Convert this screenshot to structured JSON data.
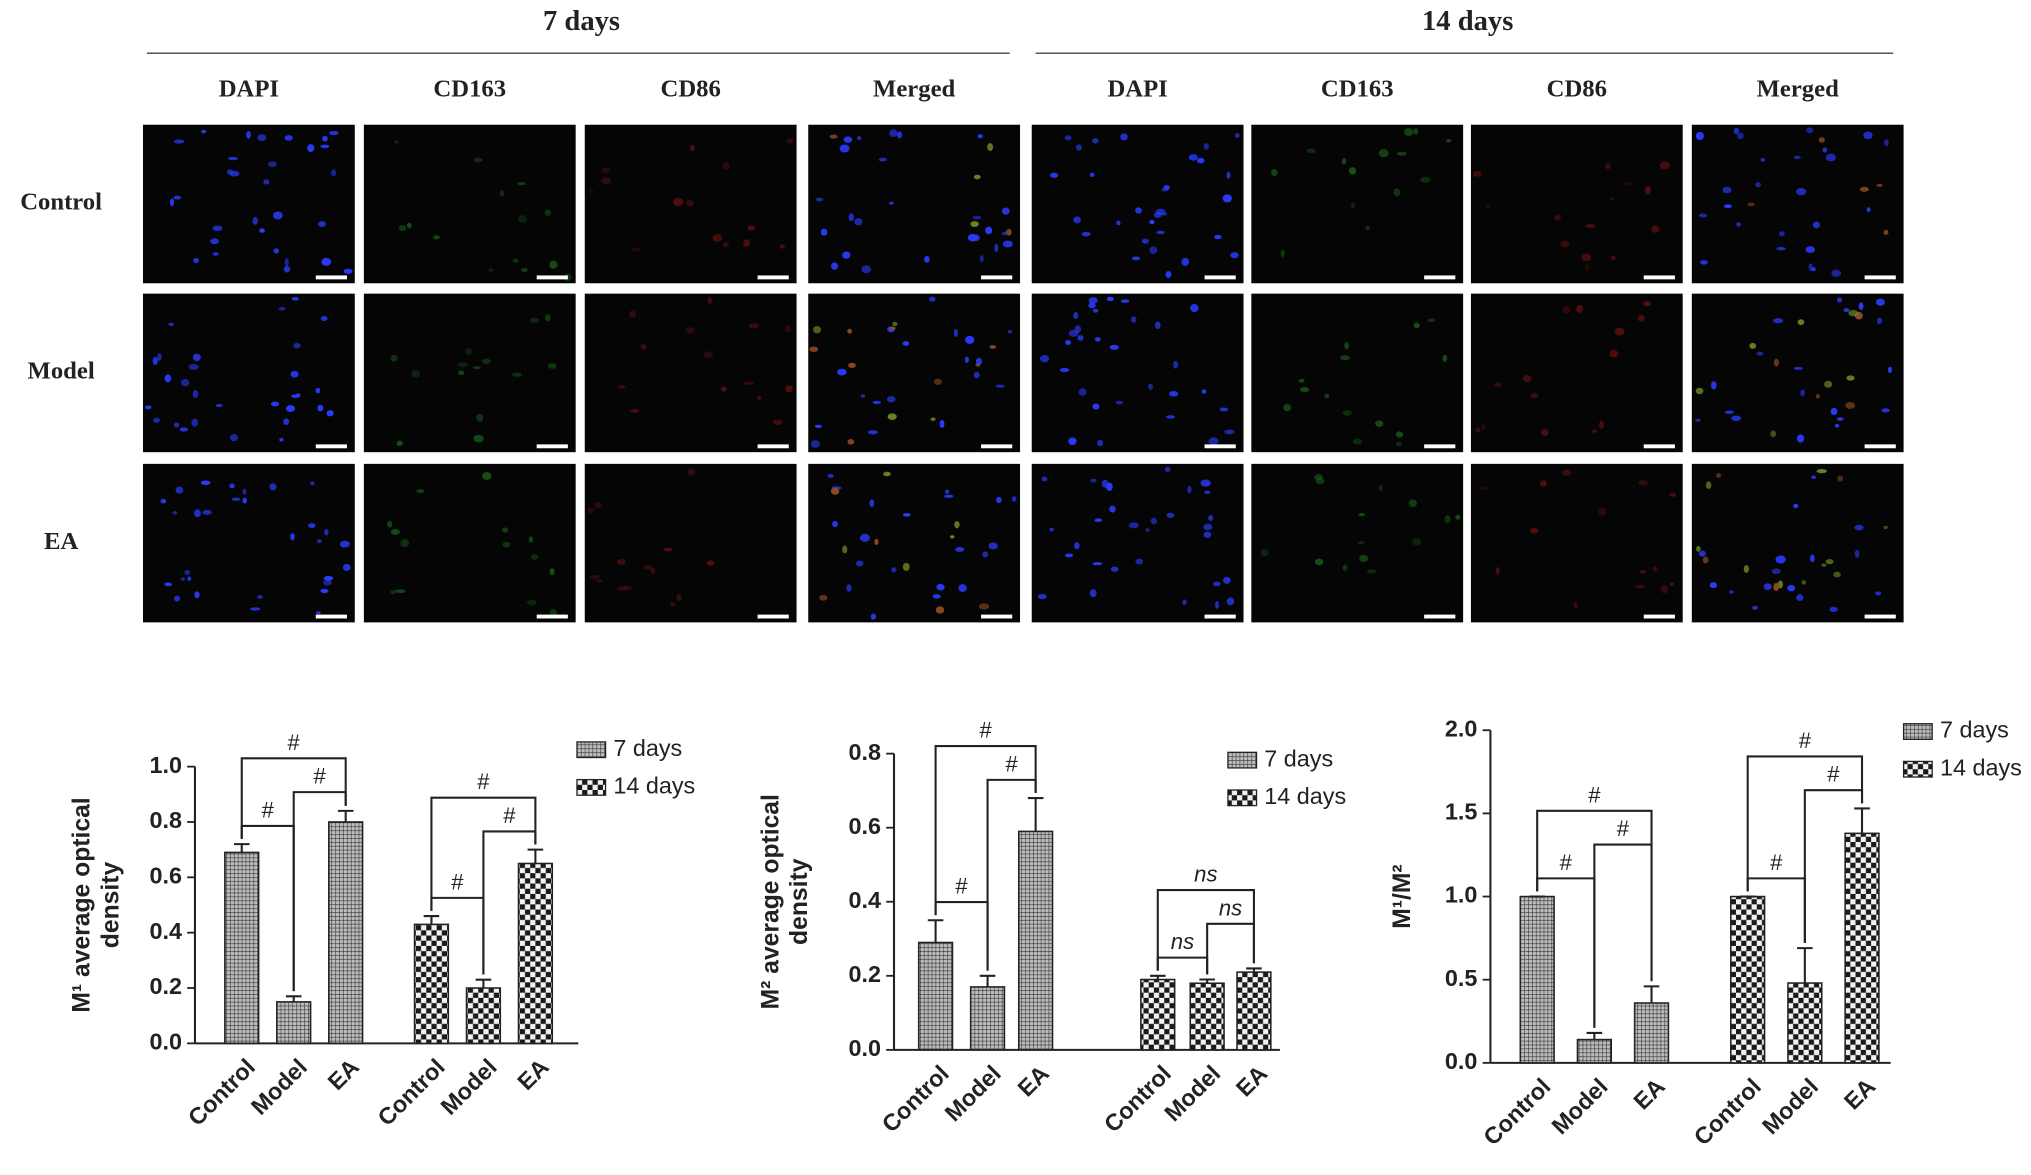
{
  "micrographs": {
    "groups": [
      "7 days",
      "14 days"
    ],
    "columns": [
      "DAPI",
      "CD163",
      "CD86",
      "Merged"
    ],
    "rows": [
      "Control",
      "Model",
      "EA"
    ]
  },
  "chart_data": [
    {
      "type": "bar",
      "ylabel": [
        "M¹ average optical",
        "density"
      ],
      "categories": [
        "Control",
        "Model",
        "EA"
      ],
      "series": [
        {
          "name": "7 days",
          "pattern": "hatch",
          "values": [
            0.69,
            0.15,
            0.8
          ],
          "errors": [
            0.03,
            0.02,
            0.04
          ]
        },
        {
          "name": "14 days",
          "pattern": "checker",
          "values": [
            0.43,
            0.2,
            0.65
          ],
          "errors": [
            0.03,
            0.03,
            0.05
          ]
        }
      ],
      "ylim": [
        0,
        1
      ],
      "yticks": [
        {
          "value": 0,
          "label": "0.0"
        },
        0.2,
        0.4,
        0.6,
        0.8,
        {
          "value": 1,
          "label": "1.0"
        }
      ],
      "annotations": [
        {
          "label": "#",
          "series": "7 days",
          "between": [
            "Control",
            "Model"
          ]
        },
        {
          "label": "#",
          "series": "7 days",
          "between": [
            "Model",
            "EA"
          ]
        },
        {
          "label": "#",
          "series": "7 days",
          "between": [
            "Control",
            "EA"
          ]
        },
        {
          "label": "#",
          "series": "14 days",
          "between": [
            "Control",
            "Model"
          ]
        },
        {
          "label": "#",
          "series": "14 days",
          "between": [
            "Model",
            "EA"
          ]
        },
        {
          "label": "#",
          "series": "14 days",
          "between": [
            "Control",
            "EA"
          ]
        }
      ]
    },
    {
      "type": "bar",
      "ylabel": [
        "M² average optical",
        "density"
      ],
      "categories": [
        "Control",
        "Model",
        "EA"
      ],
      "series": [
        {
          "name": "7 days",
          "pattern": "hatch",
          "values": [
            0.29,
            0.17,
            0.59
          ],
          "errors": [
            0.06,
            0.03,
            0.09
          ]
        },
        {
          "name": "14 days",
          "pattern": "checker",
          "values": [
            0.19,
            0.18,
            0.21
          ],
          "errors": [
            0.01,
            0.01,
            0.01
          ]
        }
      ],
      "ylim": [
        0,
        0.8
      ],
      "yticks": [
        {
          "value": 0,
          "label": "0.0"
        },
        0.2,
        0.4,
        0.6,
        0.8
      ],
      "annotations": [
        {
          "label": "#",
          "series": "7 days",
          "between": [
            "Control",
            "Model"
          ]
        },
        {
          "label": "#",
          "series": "7 days",
          "between": [
            "Model",
            "EA"
          ]
        },
        {
          "label": "#",
          "series": "7 days",
          "between": [
            "Control",
            "EA"
          ]
        },
        {
          "label": "ns",
          "series": "14 days",
          "between": [
            "Control",
            "Model"
          ],
          "font_style": "italic"
        },
        {
          "label": "ns",
          "series": "14 days",
          "between": [
            "Model",
            "EA"
          ],
          "font_style": "italic"
        },
        {
          "label": "ns",
          "series": "14 days",
          "between": [
            "Control",
            "EA"
          ],
          "font_style": "italic"
        }
      ]
    },
    {
      "type": "bar",
      "ylabel": [
        "M¹/M²"
      ],
      "categories": [
        "Control",
        "Model",
        "EA"
      ],
      "series": [
        {
          "name": "7 days",
          "pattern": "hatch",
          "values": [
            1.0,
            0.14,
            0.36
          ],
          "errors": [
            0,
            0.04,
            0.1
          ]
        },
        {
          "name": "14 days",
          "pattern": "checker",
          "values": [
            1.0,
            0.48,
            1.38
          ],
          "errors": [
            0,
            0.21,
            0.15
          ]
        }
      ],
      "ylim": [
        0,
        2
      ],
      "yticks": [
        {
          "value": 0,
          "label": "0.0"
        },
        0.5,
        {
          "value": 1,
          "label": "1.0"
        },
        1.5,
        {
          "value": 2,
          "label": "2.0"
        }
      ],
      "annotations": [
        {
          "label": "#",
          "series": "7 days",
          "between": [
            "Control",
            "Model"
          ]
        },
        {
          "label": "#",
          "series": "7 days",
          "between": [
            "Model",
            "EA"
          ]
        },
        {
          "label": "#",
          "series": "7 days",
          "between": [
            "Control",
            "EA"
          ]
        },
        {
          "label": "#",
          "series": "14 days",
          "between": [
            "Control",
            "Model"
          ]
        },
        {
          "label": "#",
          "series": "14 days",
          "between": [
            "Model",
            "EA"
          ]
        },
        {
          "label": "#",
          "series": "14 days",
          "between": [
            "Control",
            "EA"
          ]
        }
      ]
    }
  ]
}
